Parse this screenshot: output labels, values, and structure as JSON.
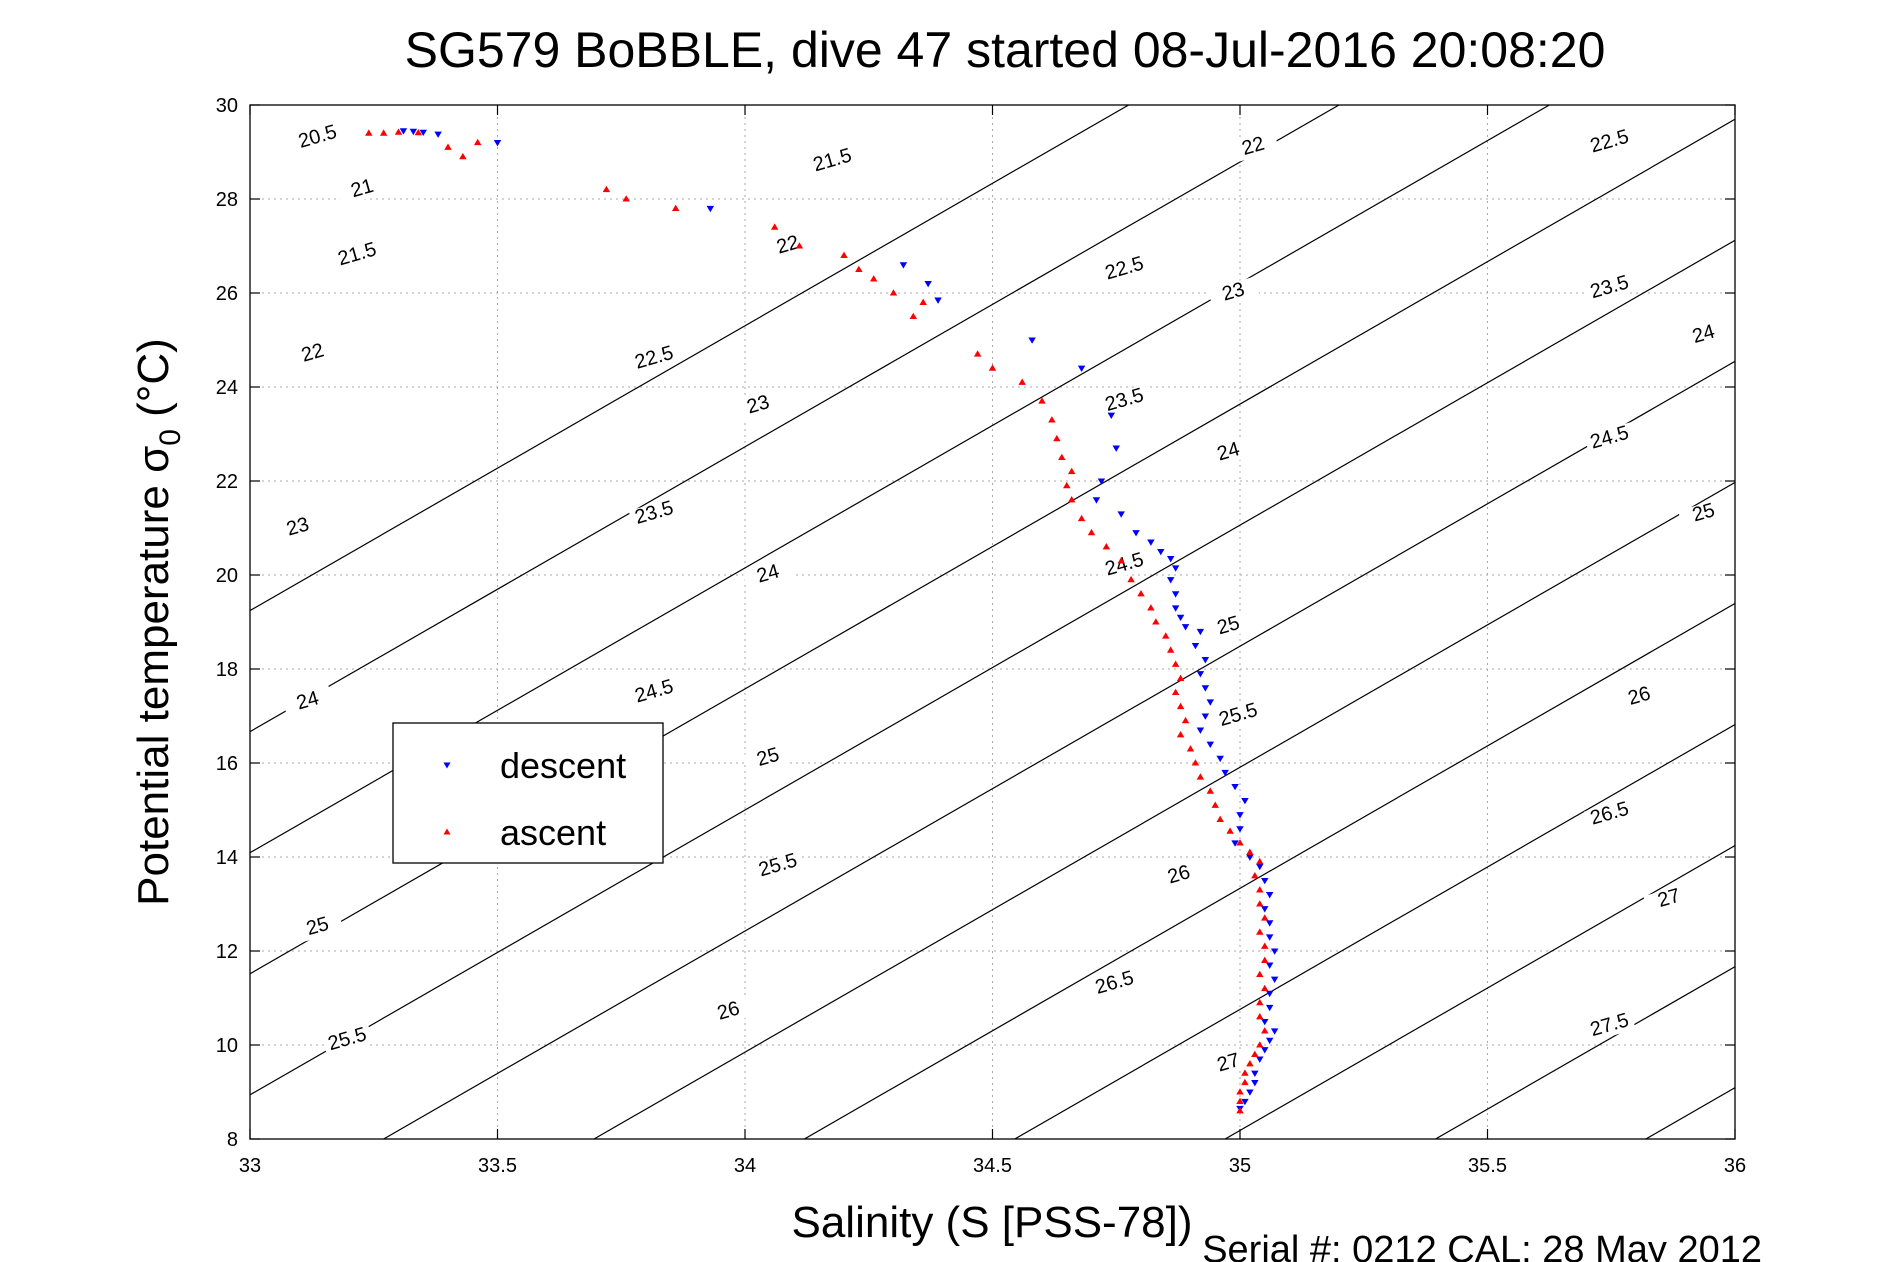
{
  "chart_data": {
    "type": "scatter",
    "title": "SG579 BoBBLE, dive 47 started 08-Jul-2016 20:08:20",
    "xlabel": "Salinity (S [PSS-78])",
    "ylabel_main": "Potential temperature ",
    "ylabel_sigma": "σ",
    "ylabel_sub": "0",
    "ylabel_unit": " (°C)",
    "footer": "Serial #: 0212  CAL: 28 May 2012",
    "xlim": [
      33,
      36
    ],
    "ylim": [
      8,
      30
    ],
    "xticks": [
      "33",
      "33.5",
      "34",
      "34.5",
      "35",
      "35.5",
      "36"
    ],
    "yticks": [
      "8",
      "10",
      "12",
      "14",
      "16",
      "18",
      "20",
      "22",
      "24",
      "26",
      "28",
      "30"
    ],
    "grid": true,
    "legend_position": "left-center",
    "contour_levels": [
      "20.5",
      "21",
      "21.5",
      "22",
      "22.5",
      "23",
      "23.5",
      "24",
      "24.5",
      "25",
      "25.5",
      "26",
      "26.5",
      "27",
      "27.5"
    ],
    "contour_labels": [
      {
        "text": "20.5",
        "x": 33.14,
        "y": 29.2
      },
      {
        "text": "21",
        "x": 33.23,
        "y": 28.1
      },
      {
        "text": "21.5",
        "x": 33.22,
        "y": 26.7
      },
      {
        "text": "22",
        "x": 33.13,
        "y": 24.6
      },
      {
        "text": "23",
        "x": 33.1,
        "y": 20.9
      },
      {
        "text": "24",
        "x": 33.12,
        "y": 17.2
      },
      {
        "text": "25",
        "x": 33.14,
        "y": 12.4
      },
      {
        "text": "25.5",
        "x": 33.2,
        "y": 10.0
      },
      {
        "text": "21.5",
        "x": 34.18,
        "y": 28.7
      },
      {
        "text": "22",
        "x": 34.09,
        "y": 26.9
      },
      {
        "text": "22.5",
        "x": 33.82,
        "y": 24.5
      },
      {
        "text": "23",
        "x": 34.03,
        "y": 23.5
      },
      {
        "text": "23.5",
        "x": 33.82,
        "y": 21.2
      },
      {
        "text": "24",
        "x": 34.05,
        "y": 19.9
      },
      {
        "text": "24.5",
        "x": 33.82,
        "y": 17.4
      },
      {
        "text": "25",
        "x": 34.05,
        "y": 16.0
      },
      {
        "text": "25.5",
        "x": 34.07,
        "y": 13.7
      },
      {
        "text": "26",
        "x": 33.97,
        "y": 10.6
      },
      {
        "text": "22",
        "x": 35.03,
        "y": 29.0
      },
      {
        "text": "22.5",
        "x": 34.77,
        "y": 26.4
      },
      {
        "text": "23",
        "x": 34.99,
        "y": 25.9
      },
      {
        "text": "23.5",
        "x": 34.77,
        "y": 23.6
      },
      {
        "text": "24",
        "x": 34.98,
        "y": 22.5
      },
      {
        "text": "24.5",
        "x": 34.77,
        "y": 20.1
      },
      {
        "text": "25",
        "x": 34.98,
        "y": 18.8
      },
      {
        "text": "25.5",
        "x": 35.0,
        "y": 16.9
      },
      {
        "text": "26",
        "x": 34.88,
        "y": 13.5
      },
      {
        "text": "26.5",
        "x": 34.75,
        "y": 11.2
      },
      {
        "text": "27",
        "x": 34.98,
        "y": 9.5
      },
      {
        "text": "22.5",
        "x": 35.75,
        "y": 29.1
      },
      {
        "text": "23.5",
        "x": 35.75,
        "y": 26.0
      },
      {
        "text": "24",
        "x": 35.94,
        "y": 25.0
      },
      {
        "text": "24.5",
        "x": 35.75,
        "y": 22.8
      },
      {
        "text": "25",
        "x": 35.94,
        "y": 21.2
      },
      {
        "text": "26",
        "x": 35.81,
        "y": 17.3
      },
      {
        "text": "26.5",
        "x": 35.75,
        "y": 14.8
      },
      {
        "text": "27",
        "x": 35.87,
        "y": 13.0
      },
      {
        "text": "27.5",
        "x": 35.75,
        "y": 10.3
      }
    ],
    "series": [
      {
        "name": "descent",
        "color": "#0000ff",
        "marker": "triangle-down",
        "points": [
          [
            33.31,
            29.45
          ],
          [
            33.33,
            29.44
          ],
          [
            33.35,
            29.42
          ],
          [
            33.38,
            29.38
          ],
          [
            33.5,
            29.2
          ],
          [
            33.93,
            27.8
          ],
          [
            34.32,
            26.6
          ],
          [
            34.37,
            26.2
          ],
          [
            34.39,
            25.85
          ],
          [
            34.58,
            25.0
          ],
          [
            34.68,
            24.4
          ],
          [
            34.74,
            23.4
          ],
          [
            34.75,
            22.7
          ],
          [
            34.72,
            22.0
          ],
          [
            34.71,
            21.6
          ],
          [
            34.76,
            21.3
          ],
          [
            34.79,
            20.9
          ],
          [
            34.82,
            20.7
          ],
          [
            34.84,
            20.5
          ],
          [
            34.86,
            20.35
          ],
          [
            34.87,
            20.15
          ],
          [
            34.86,
            19.9
          ],
          [
            34.87,
            19.6
          ],
          [
            34.87,
            19.3
          ],
          [
            34.88,
            19.1
          ],
          [
            34.89,
            18.9
          ],
          [
            34.92,
            18.8
          ],
          [
            34.91,
            18.5
          ],
          [
            34.93,
            18.2
          ],
          [
            34.92,
            17.9
          ],
          [
            34.93,
            17.6
          ],
          [
            34.94,
            17.3
          ],
          [
            34.93,
            17.0
          ],
          [
            34.92,
            16.7
          ],
          [
            34.94,
            16.4
          ],
          [
            34.96,
            16.1
          ],
          [
            34.97,
            15.8
          ],
          [
            34.99,
            15.5
          ],
          [
            35.01,
            15.2
          ],
          [
            35.0,
            14.9
          ],
          [
            35.0,
            14.6
          ],
          [
            34.99,
            14.3
          ],
          [
            35.02,
            14.0
          ],
          [
            35.04,
            13.8
          ],
          [
            35.05,
            13.5
          ],
          [
            35.06,
            13.2
          ],
          [
            35.05,
            12.9
          ],
          [
            35.06,
            12.6
          ],
          [
            35.06,
            12.3
          ],
          [
            35.07,
            12.0
          ],
          [
            35.06,
            11.7
          ],
          [
            35.07,
            11.4
          ],
          [
            35.06,
            11.1
          ],
          [
            35.06,
            10.8
          ],
          [
            35.05,
            10.5
          ],
          [
            35.07,
            10.3
          ],
          [
            35.06,
            10.1
          ],
          [
            35.05,
            9.9
          ],
          [
            35.04,
            9.7
          ],
          [
            35.03,
            9.4
          ],
          [
            35.03,
            9.2
          ],
          [
            35.02,
            9.0
          ],
          [
            35.01,
            8.8
          ],
          [
            35.0,
            8.65
          ]
        ]
      },
      {
        "name": "ascent",
        "color": "#ff0000",
        "marker": "triangle-up",
        "points": [
          [
            33.24,
            29.4
          ],
          [
            33.27,
            29.4
          ],
          [
            33.3,
            29.42
          ],
          [
            33.34,
            29.41
          ],
          [
            33.4,
            29.1
          ],
          [
            33.43,
            28.9
          ],
          [
            33.46,
            29.2
          ],
          [
            33.72,
            28.2
          ],
          [
            33.76,
            28.0
          ],
          [
            33.86,
            27.8
          ],
          [
            34.06,
            27.4
          ],
          [
            34.11,
            27.0
          ],
          [
            34.2,
            26.8
          ],
          [
            34.23,
            26.5
          ],
          [
            34.26,
            26.3
          ],
          [
            34.3,
            26.0
          ],
          [
            34.34,
            25.5
          ],
          [
            34.36,
            25.8
          ],
          [
            34.47,
            24.7
          ],
          [
            34.5,
            24.4
          ],
          [
            34.56,
            24.1
          ],
          [
            34.6,
            23.7
          ],
          [
            34.62,
            23.3
          ],
          [
            34.63,
            22.9
          ],
          [
            34.64,
            22.5
          ],
          [
            34.66,
            22.2
          ],
          [
            34.65,
            21.9
          ],
          [
            34.66,
            21.6
          ],
          [
            34.68,
            21.2
          ],
          [
            34.7,
            20.9
          ],
          [
            34.73,
            20.6
          ],
          [
            34.76,
            20.3
          ],
          [
            34.78,
            19.9
          ],
          [
            34.8,
            19.6
          ],
          [
            34.82,
            19.3
          ],
          [
            34.83,
            19.0
          ],
          [
            34.85,
            18.7
          ],
          [
            34.86,
            18.4
          ],
          [
            34.87,
            18.1
          ],
          [
            34.88,
            17.8
          ],
          [
            34.87,
            17.5
          ],
          [
            34.88,
            17.2
          ],
          [
            34.89,
            16.9
          ],
          [
            34.88,
            16.6
          ],
          [
            34.9,
            16.3
          ],
          [
            34.91,
            16.0
          ],
          [
            34.92,
            15.7
          ],
          [
            34.94,
            15.4
          ],
          [
            34.95,
            15.1
          ],
          [
            34.96,
            14.8
          ],
          [
            34.98,
            14.55
          ],
          [
            35.0,
            14.3
          ],
          [
            35.02,
            14.1
          ],
          [
            35.04,
            13.9
          ],
          [
            35.03,
            13.6
          ],
          [
            35.04,
            13.3
          ],
          [
            35.04,
            13.0
          ],
          [
            35.05,
            12.7
          ],
          [
            35.04,
            12.4
          ],
          [
            35.05,
            12.1
          ],
          [
            35.05,
            11.8
          ],
          [
            35.04,
            11.5
          ],
          [
            35.05,
            11.2
          ],
          [
            35.04,
            10.9
          ],
          [
            35.04,
            10.6
          ],
          [
            35.05,
            10.3
          ],
          [
            35.04,
            10.0
          ],
          [
            35.03,
            9.8
          ],
          [
            35.02,
            9.6
          ],
          [
            35.01,
            9.4
          ],
          [
            35.01,
            9.2
          ],
          [
            35.0,
            9.0
          ],
          [
            35.0,
            8.8
          ],
          [
            35.0,
            8.6
          ]
        ]
      }
    ]
  }
}
